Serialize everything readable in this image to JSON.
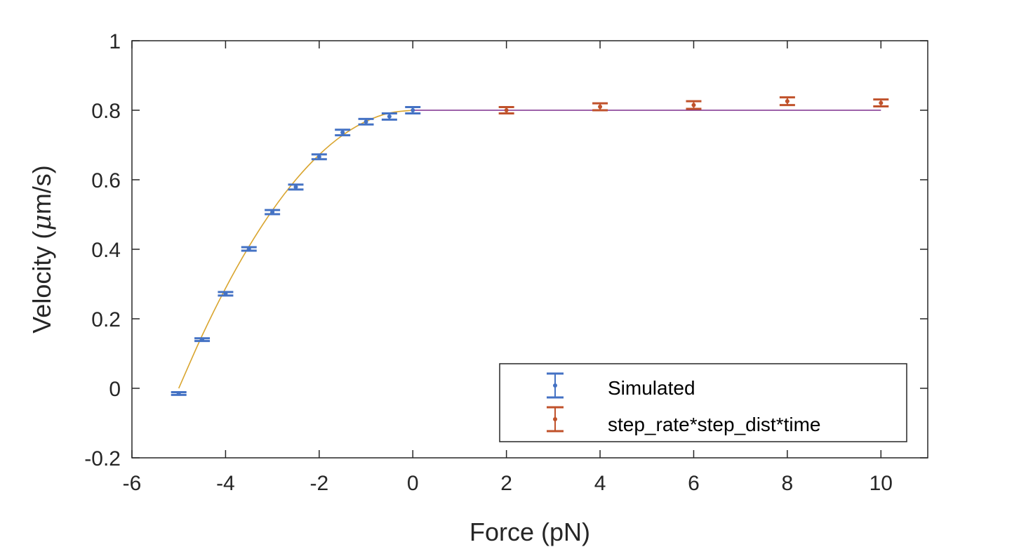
{
  "chart_data": {
    "type": "scatter",
    "xlabel": "Force (pN)",
    "ylabel_prefix": "Velocity (",
    "ylabel_symbol": "μ",
    "ylabel_suffix": "m/s)",
    "xlim": [
      -6,
      11
    ],
    "ylim": [
      -0.2,
      1
    ],
    "xticks": [
      "-6",
      "-4",
      "-2",
      "0",
      "2",
      "4",
      "6",
      "8",
      "10"
    ],
    "xtick_values": [
      -6,
      -4,
      -2,
      0,
      2,
      4,
      6,
      8,
      10
    ],
    "yticks": [
      "-0.2",
      "0",
      "0.2",
      "0.4",
      "0.6",
      "0.8",
      "1"
    ],
    "ytick_values": [
      -0.2,
      0,
      0.2,
      0.4,
      0.6,
      0.8,
      1
    ],
    "grid": false,
    "legend_position": "bottom-right",
    "series": [
      {
        "name": "Simulated",
        "color": "#4472c4",
        "marker": "errorbar",
        "x": [
          -5,
          -4.5,
          -4,
          -3.5,
          -3,
          -2.5,
          -2,
          -1.5,
          -1,
          -0.5,
          0
        ],
        "y": [
          -0.015,
          0.14,
          0.272,
          0.401,
          0.507,
          0.579,
          0.666,
          0.736,
          0.767,
          0.782,
          0.8
        ],
        "err": [
          0.004,
          0.004,
          0.005,
          0.005,
          0.006,
          0.007,
          0.007,
          0.008,
          0.008,
          0.009,
          0.009
        ]
      },
      {
        "name": "step_rate*step_dist*time",
        "color": "#c0522b",
        "marker": "errorbar",
        "x": [
          2,
          4,
          6,
          8,
          10
        ],
        "y": [
          0.8,
          0.81,
          0.815,
          0.826,
          0.821
        ],
        "err": [
          0.009,
          0.01,
          0.011,
          0.011,
          0.01
        ]
      }
    ],
    "fit_lines": [
      {
        "color": "#d9a52f",
        "x": [
          -5,
          -4.5,
          -4,
          -3.5,
          -3,
          -2.5,
          -2,
          -1.5,
          -1,
          -0.5,
          0
        ],
        "y": [
          0,
          0.152,
          0.288,
          0.408,
          0.512,
          0.6,
          0.672,
          0.728,
          0.768,
          0.792,
          0.8
        ]
      },
      {
        "color": "#7e2f8e",
        "x": [
          0,
          10
        ],
        "y": [
          0.8,
          0.8
        ]
      }
    ]
  }
}
